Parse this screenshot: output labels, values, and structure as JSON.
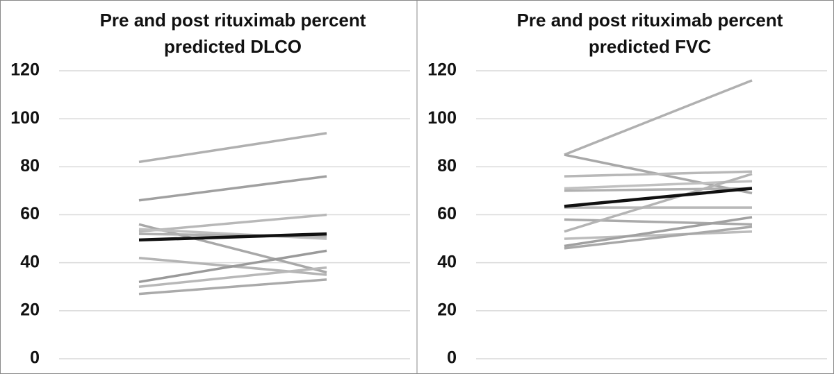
{
  "chart_data": [
    {
      "type": "line",
      "title": [
        "Pre and post rituximab percent",
        "predicted DLCO"
      ],
      "categories": [
        null,
        null
      ],
      "ylim": [
        0,
        120
      ],
      "yticks": [
        0,
        20,
        40,
        60,
        80,
        100,
        120
      ],
      "grid": true,
      "series": [
        {
          "color": "#b0b0b0",
          "values": [
            82,
            94
          ]
        },
        {
          "color": "#a0a0a0",
          "values": [
            66,
            76
          ]
        },
        {
          "color": "#b8b8b8",
          "values": [
            53,
            60
          ]
        },
        {
          "color": "#a8a8a8",
          "values": [
            56,
            36
          ]
        },
        {
          "color": "#c0c0c0",
          "values": [
            54,
            50
          ]
        },
        {
          "color": "#b0b0b0",
          "values": [
            52,
            51
          ]
        },
        {
          "color": "#b4b4b4",
          "values": [
            42,
            35
          ]
        },
        {
          "color": "#9a9a9a",
          "values": [
            32,
            45
          ]
        },
        {
          "color": "#b8b8b8",
          "values": [
            30,
            38
          ]
        },
        {
          "color": "#aaaaaa",
          "values": [
            27,
            33
          ]
        },
        {
          "color": "#111111",
          "values": [
            49.5,
            52
          ]
        }
      ]
    },
    {
      "type": "line",
      "title": [
        "Pre and post rituximab percent",
        "predicted FVC"
      ],
      "categories": [
        null,
        null
      ],
      "ylim": [
        0,
        120
      ],
      "yticks": [
        0,
        20,
        40,
        60,
        80,
        100,
        120
      ],
      "grid": true,
      "series": [
        {
          "color": "#b0b0b0",
          "values": [
            85,
            116
          ]
        },
        {
          "color": "#a8a8a8",
          "values": [
            85,
            69
          ]
        },
        {
          "color": "#b8b8b8",
          "values": [
            76,
            78
          ]
        },
        {
          "color": "#c0c0c0",
          "values": [
            71,
            74
          ]
        },
        {
          "color": "#b0b0b0",
          "values": [
            70,
            71
          ]
        },
        {
          "color": "#b8b8b8",
          "values": [
            63,
            63
          ]
        },
        {
          "color": "#aaaaaa",
          "values": [
            58,
            56
          ]
        },
        {
          "color": "#b4b4b4",
          "values": [
            53,
            77
          ]
        },
        {
          "color": "#bcbcbc",
          "values": [
            50,
            53
          ]
        },
        {
          "color": "#a0a0a0",
          "values": [
            47,
            59
          ]
        },
        {
          "color": "#a8a8a8",
          "values": [
            46,
            55
          ]
        },
        {
          "color": "#111111",
          "values": [
            63.5,
            71
          ]
        }
      ]
    }
  ]
}
